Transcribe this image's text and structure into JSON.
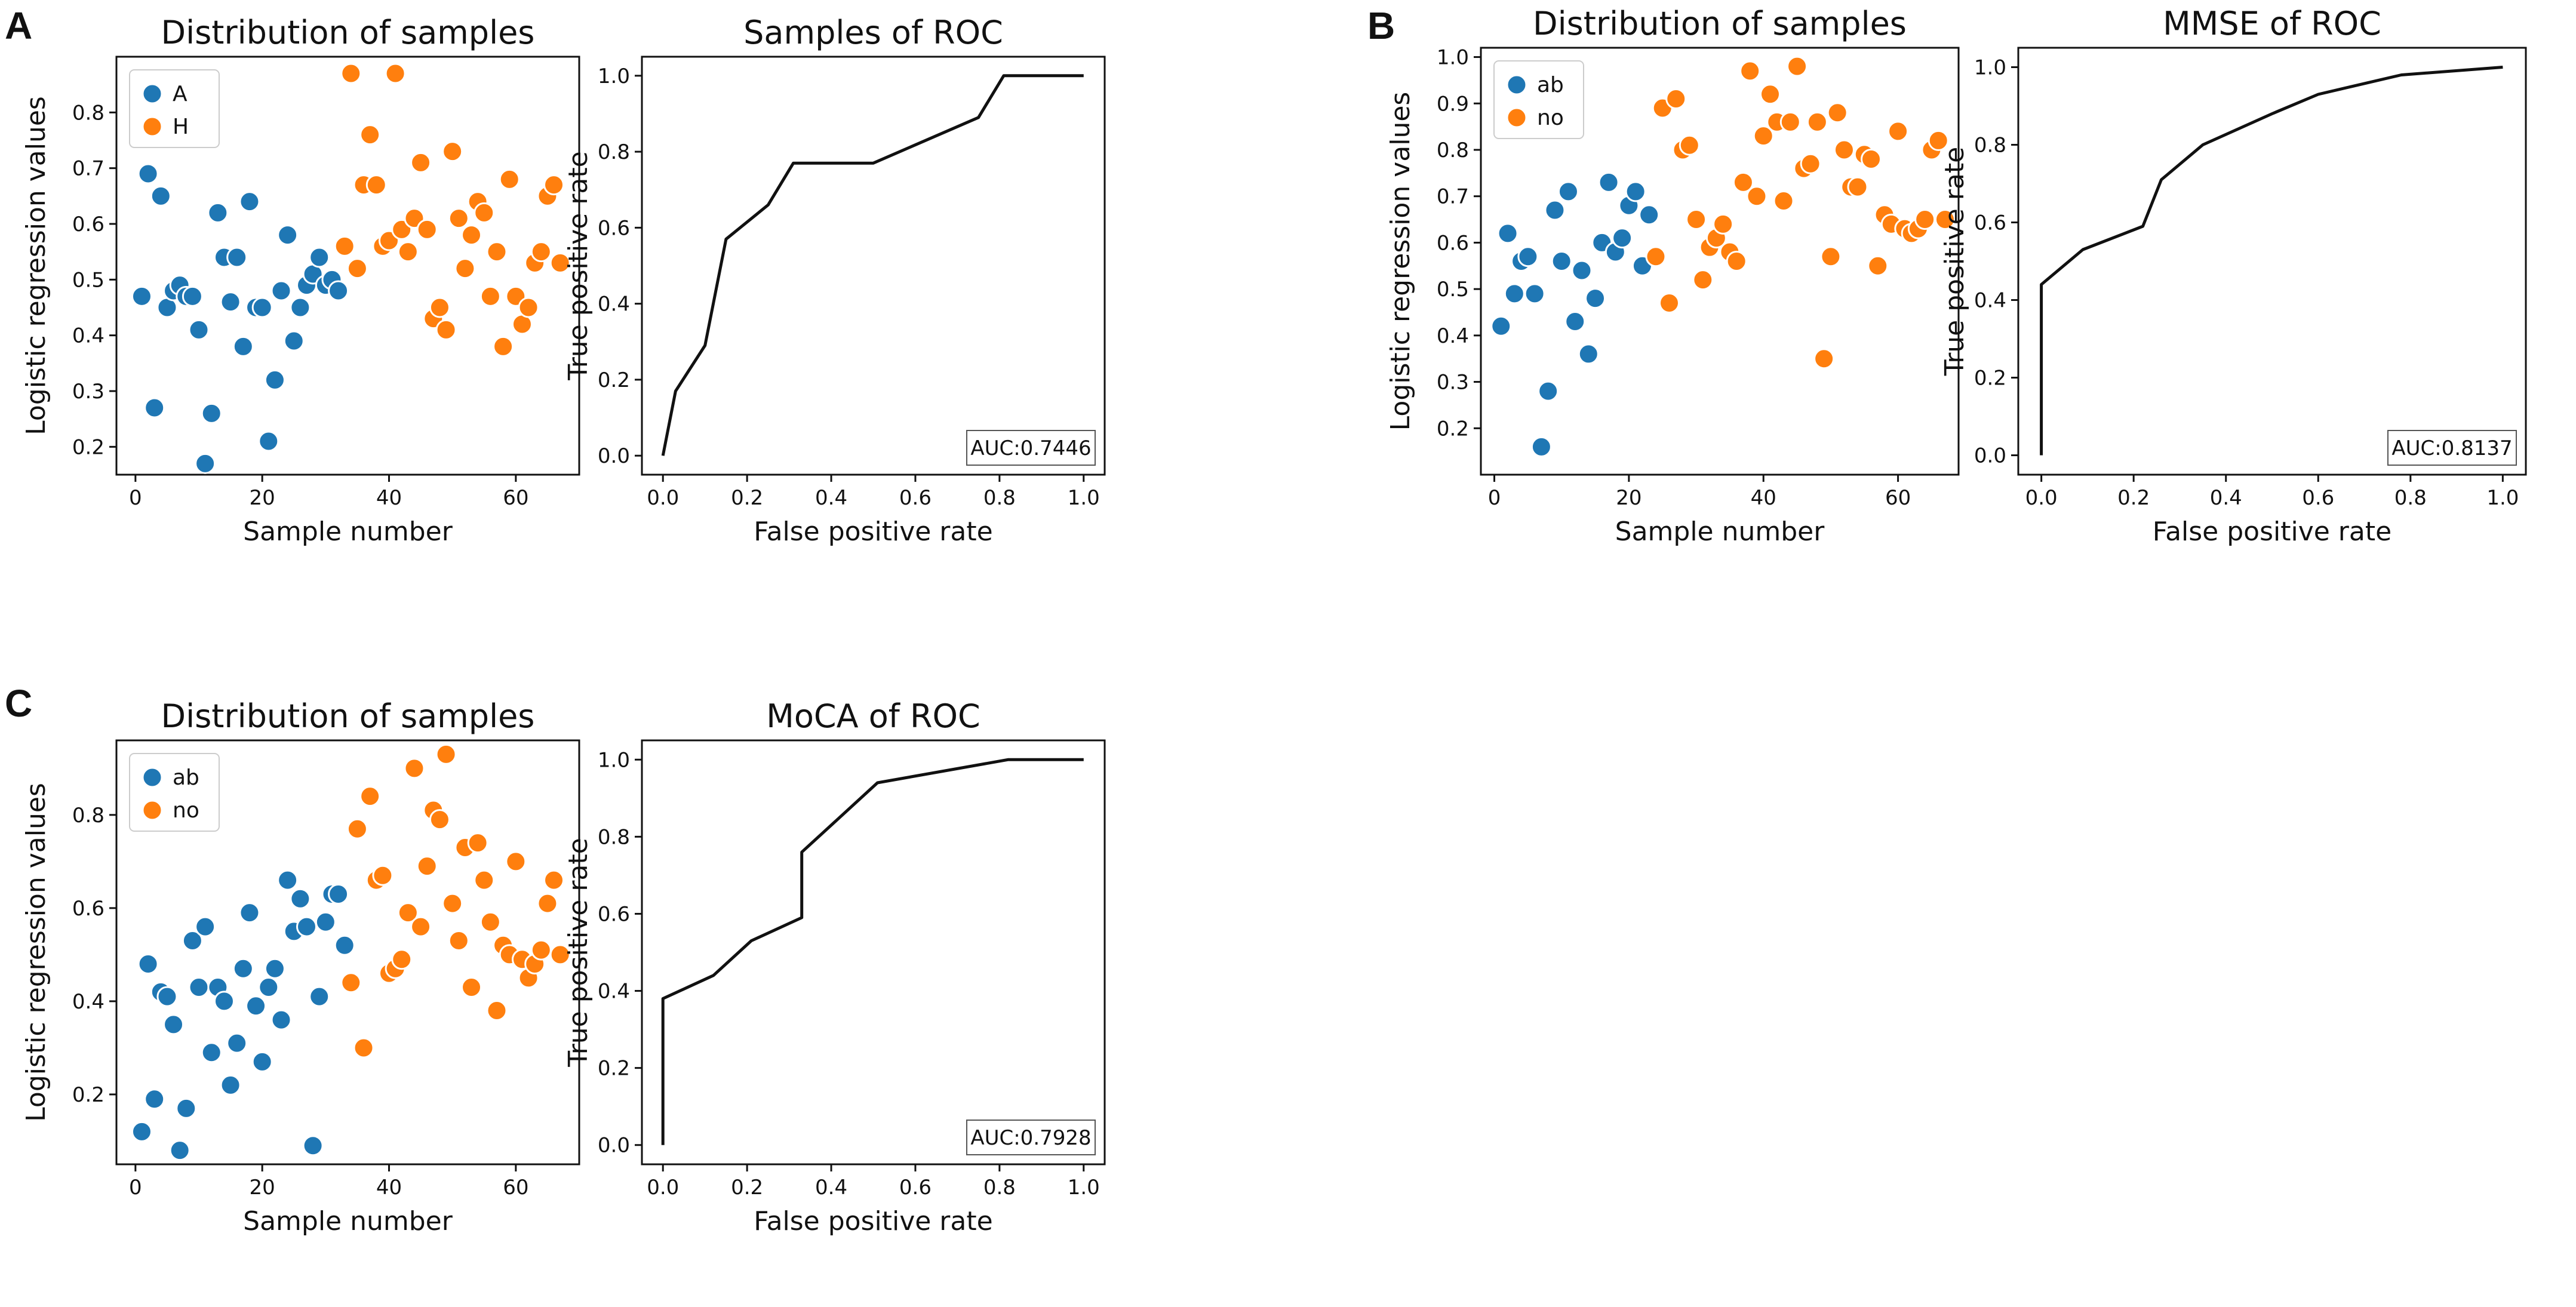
{
  "figure": {
    "panels": [
      "A",
      "B",
      "C"
    ]
  },
  "colors": {
    "blue": "#1f77b4",
    "orange": "#ff7f0e",
    "line": "#111111"
  },
  "chart_data": [
    {
      "id": "A-dist",
      "panel": "A",
      "type": "scatter",
      "title": "Distribution of samples",
      "xlabel": "Sample number",
      "ylabel": "Logistic regression values",
      "xlim": [
        -3,
        70
      ],
      "ylim": [
        0.15,
        0.9
      ],
      "xticks": [
        0,
        20,
        40,
        60
      ],
      "yticks": [
        0.2,
        0.3,
        0.4,
        0.5,
        0.6,
        0.7,
        0.8
      ],
      "legend": {
        "position": "top-left",
        "entries": [
          "A",
          "H"
        ]
      },
      "series": [
        {
          "name": "A",
          "color": "#1f77b4",
          "x": [
            1,
            2,
            3,
            4,
            5,
            6,
            7,
            8,
            9,
            10,
            11,
            12,
            13,
            14,
            15,
            16,
            17,
            18,
            19,
            20,
            21,
            22,
            23,
            24,
            25,
            26,
            27,
            28,
            29,
            30,
            31,
            32
          ],
          "y": [
            0.47,
            0.69,
            0.27,
            0.65,
            0.45,
            0.48,
            0.49,
            0.47,
            0.47,
            0.41,
            0.17,
            0.26,
            0.62,
            0.54,
            0.46,
            0.54,
            0.38,
            0.64,
            0.45,
            0.45,
            0.21,
            0.32,
            0.48,
            0.58,
            0.39,
            0.45,
            0.49,
            0.51,
            0.54,
            0.49,
            0.5,
            0.48
          ]
        },
        {
          "name": "H",
          "color": "#ff7f0e",
          "x": [
            33,
            34,
            35,
            36,
            37,
            38,
            39,
            40,
            41,
            42,
            43,
            44,
            45,
            46,
            47,
            48,
            49,
            50,
            51,
            52,
            53,
            54,
            55,
            56,
            57,
            58,
            59,
            60,
            61,
            62,
            63,
            64,
            65,
            66,
            67
          ],
          "y": [
            0.56,
            0.87,
            0.52,
            0.67,
            0.76,
            0.67,
            0.56,
            0.57,
            0.87,
            0.59,
            0.55,
            0.61,
            0.71,
            0.59,
            0.43,
            0.45,
            0.41,
            0.73,
            0.61,
            0.52,
            0.58,
            0.64,
            0.62,
            0.47,
            0.55,
            0.38,
            0.68,
            0.47,
            0.42,
            0.45,
            0.53,
            0.55,
            0.65,
            0.67,
            0.53
          ]
        }
      ]
    },
    {
      "id": "A-roc",
      "panel": "A",
      "type": "line",
      "title": "Samples of ROC",
      "xlabel": "False positive rate",
      "ylabel": "True positive rate",
      "xlim": [
        -0.05,
        1.05
      ],
      "ylim": [
        -0.05,
        1.05
      ],
      "xticks": [
        0.0,
        0.2,
        0.4,
        0.6,
        0.8,
        1.0
      ],
      "yticks": [
        0.0,
        0.2,
        0.4,
        0.6,
        0.8,
        1.0
      ],
      "auc": "AUC:0.7446",
      "series": [
        {
          "name": "ROC",
          "x": [
            0,
            0.03,
            0.1,
            0.15,
            0.25,
            0.31,
            0.5,
            0.75,
            0.81,
            1.0
          ],
          "y": [
            0,
            0.17,
            0.29,
            0.57,
            0.66,
            0.77,
            0.77,
            0.89,
            1.0,
            1.0
          ]
        }
      ]
    },
    {
      "id": "B-dist",
      "panel": "B",
      "type": "scatter",
      "title": "Distribution of samples",
      "xlabel": "Sample number",
      "ylabel": "Logistic regression values",
      "xlim": [
        -2,
        69
      ],
      "ylim": [
        0.1,
        1.02
      ],
      "xticks": [
        0,
        20,
        40,
        60
      ],
      "yticks": [
        0.2,
        0.3,
        0.4,
        0.5,
        0.6,
        0.7,
        0.8,
        0.9,
        1.0
      ],
      "legend": {
        "position": "top-left",
        "entries": [
          "ab",
          "no"
        ]
      },
      "series": [
        {
          "name": "ab",
          "color": "#1f77b4",
          "x": [
            1,
            2,
            3,
            4,
            5,
            6,
            7,
            8,
            9,
            10,
            11,
            12,
            13,
            14,
            15,
            16,
            17,
            18,
            19,
            20,
            21,
            22,
            23
          ],
          "y": [
            0.42,
            0.62,
            0.49,
            0.56,
            0.57,
            0.49,
            0.16,
            0.28,
            0.67,
            0.56,
            0.71,
            0.43,
            0.54,
            0.36,
            0.48,
            0.6,
            0.73,
            0.58,
            0.61,
            0.68,
            0.71,
            0.55,
            0.66
          ]
        },
        {
          "name": "no",
          "color": "#ff7f0e",
          "x": [
            24,
            25,
            26,
            27,
            28,
            29,
            30,
            31,
            32,
            33,
            34,
            35,
            36,
            37,
            38,
            39,
            40,
            41,
            42,
            43,
            44,
            45,
            46,
            47,
            48,
            49,
            50,
            51,
            52,
            53,
            54,
            55,
            56,
            57,
            58,
            59,
            60,
            61,
            62,
            63,
            64,
            65,
            66,
            67
          ],
          "y": [
            0.57,
            0.89,
            0.47,
            0.91,
            0.8,
            0.81,
            0.65,
            0.52,
            0.59,
            0.61,
            0.64,
            0.58,
            0.56,
            0.73,
            0.97,
            0.7,
            0.83,
            0.92,
            0.86,
            0.69,
            0.86,
            0.98,
            0.76,
            0.77,
            0.86,
            0.35,
            0.57,
            0.88,
            0.8,
            0.72,
            0.72,
            0.79,
            0.78,
            0.55,
            0.66,
            0.64,
            0.84,
            0.63,
            0.62,
            0.63,
            0.65,
            0.8,
            0.82,
            0.65
          ]
        }
      ]
    },
    {
      "id": "B-roc",
      "panel": "B",
      "type": "line",
      "title": "MMSE of ROC",
      "xlabel": "False positive rate",
      "ylabel": "True positive rate",
      "xlim": [
        -0.05,
        1.05
      ],
      "ylim": [
        -0.05,
        1.05
      ],
      "xticks": [
        0.0,
        0.2,
        0.4,
        0.6,
        0.8,
        1.0
      ],
      "yticks": [
        0.0,
        0.2,
        0.4,
        0.6,
        0.8,
        1.0
      ],
      "auc": "AUC:0.8137",
      "series": [
        {
          "name": "ROC",
          "x": [
            0,
            0,
            0.09,
            0.22,
            0.26,
            0.35,
            0.5,
            0.6,
            0.78,
            1.0
          ],
          "y": [
            0,
            0.44,
            0.53,
            0.59,
            0.71,
            0.8,
            0.88,
            0.93,
            0.98,
            1.0
          ]
        }
      ]
    },
    {
      "id": "C-dist",
      "panel": "C",
      "type": "scatter",
      "title": "Distribution of samples",
      "xlabel": "Sample number",
      "ylabel": "Logistic regression values",
      "xlim": [
        -3,
        70
      ],
      "ylim": [
        0.05,
        0.96
      ],
      "xticks": [
        0,
        20,
        40,
        60
      ],
      "yticks": [
        0.2,
        0.4,
        0.6,
        0.8
      ],
      "legend": {
        "position": "top-left",
        "entries": [
          "ab",
          "no"
        ]
      },
      "series": [
        {
          "name": "ab",
          "color": "#1f77b4",
          "x": [
            1,
            2,
            3,
            4,
            5,
            6,
            7,
            8,
            9,
            10,
            11,
            12,
            13,
            14,
            15,
            16,
            17,
            18,
            19,
            20,
            21,
            22,
            23,
            24,
            25,
            26,
            27,
            28,
            29,
            30,
            31,
            32,
            33
          ],
          "y": [
            0.12,
            0.48,
            0.19,
            0.42,
            0.41,
            0.35,
            0.08,
            0.17,
            0.53,
            0.43,
            0.56,
            0.29,
            0.43,
            0.4,
            0.22,
            0.31,
            0.47,
            0.59,
            0.39,
            0.27,
            0.43,
            0.47,
            0.36,
            0.66,
            0.55,
            0.62,
            0.56,
            0.09,
            0.41,
            0.57,
            0.63,
            0.63,
            0.52
          ]
        },
        {
          "name": "no",
          "color": "#ff7f0e",
          "x": [
            34,
            35,
            36,
            37,
            38,
            39,
            40,
            41,
            42,
            43,
            44,
            45,
            46,
            47,
            48,
            49,
            50,
            51,
            52,
            53,
            54,
            55,
            56,
            57,
            58,
            59,
            60,
            61,
            62,
            63,
            64,
            65,
            66,
            67
          ],
          "y": [
            0.44,
            0.77,
            0.3,
            0.84,
            0.66,
            0.67,
            0.46,
            0.47,
            0.49,
            0.59,
            0.9,
            0.56,
            0.69,
            0.81,
            0.79,
            0.93,
            0.61,
            0.53,
            0.73,
            0.43,
            0.74,
            0.66,
            0.57,
            0.38,
            0.52,
            0.5,
            0.7,
            0.49,
            0.45,
            0.48,
            0.51,
            0.61,
            0.66,
            0.5
          ]
        }
      ]
    },
    {
      "id": "C-roc",
      "panel": "C",
      "type": "line",
      "title": "MoCA of ROC",
      "xlabel": "False positive rate",
      "ylabel": "True positive rate",
      "xlim": [
        -0.05,
        1.05
      ],
      "ylim": [
        -0.05,
        1.05
      ],
      "xticks": [
        0.0,
        0.2,
        0.4,
        0.6,
        0.8,
        1.0
      ],
      "yticks": [
        0.0,
        0.2,
        0.4,
        0.6,
        0.8,
        1.0
      ],
      "auc": "AUC:0.7928",
      "series": [
        {
          "name": "ROC",
          "x": [
            0,
            0,
            0.12,
            0.21,
            0.33,
            0.33,
            0.37,
            0.51,
            0.82,
            1.0
          ],
          "y": [
            0,
            0.38,
            0.44,
            0.53,
            0.59,
            0.76,
            0.8,
            0.94,
            1.0,
            1.0
          ]
        }
      ]
    }
  ]
}
